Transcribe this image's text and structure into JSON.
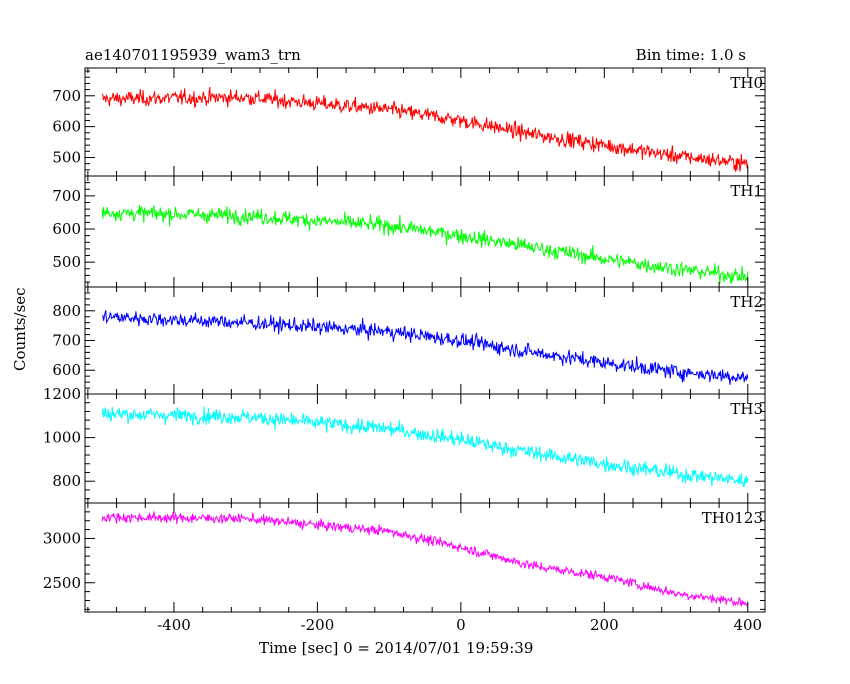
{
  "header": {
    "title_left": "ae140701195939_wam3_trn",
    "title_right": "Bin time: 1.0 s"
  },
  "axes": {
    "ylabel": "Counts/sec",
    "xlabel": "Time [sec] 0 = 2014/07/01 19:59:39"
  },
  "chart_data": {
    "type": "line",
    "x_range": [
      -500,
      400
    ],
    "bin_time_s": 1.0,
    "x_ticks": [
      -400,
      -200,
      0,
      200,
      400
    ],
    "panels": [
      {
        "name": "TH0",
        "color": "#ff0000",
        "ylim": [
          440,
          790
        ],
        "yticks": [
          500,
          600,
          700
        ],
        "trend": [
          [
            -500,
            690
          ],
          [
            -300,
            695
          ],
          [
            -100,
            655
          ],
          [
            0,
            620
          ],
          [
            100,
            575
          ],
          [
            200,
            540
          ],
          [
            300,
            505
          ],
          [
            400,
            480
          ]
        ],
        "noise": 32
      },
      {
        "name": "TH1",
        "color": "#00ff00",
        "ylim": [
          425,
          760
        ],
        "yticks": [
          500,
          600,
          700
        ],
        "trend": [
          [
            -500,
            650
          ],
          [
            -300,
            640
          ],
          [
            -100,
            610
          ],
          [
            0,
            580
          ],
          [
            100,
            545
          ],
          [
            200,
            510
          ],
          [
            300,
            480
          ],
          [
            400,
            455
          ]
        ],
        "noise": 30
      },
      {
        "name": "TH2",
        "color": "#0000ff",
        "ylim": [
          520,
          880
        ],
        "yticks": [
          600,
          700,
          800
        ],
        "trend": [
          [
            -500,
            780
          ],
          [
            -300,
            760
          ],
          [
            -100,
            730
          ],
          [
            0,
            700
          ],
          [
            100,
            660
          ],
          [
            200,
            625
          ],
          [
            300,
            595
          ],
          [
            400,
            575
          ]
        ],
        "noise": 32
      },
      {
        "name": "TH3",
        "color": "#00ffff",
        "ylim": [
          700,
          1200
        ],
        "yticks": [
          800,
          1000,
          1200
        ],
        "trend": [
          [
            -500,
            1110
          ],
          [
            -300,
            1095
          ],
          [
            -100,
            1040
          ],
          [
            0,
            990
          ],
          [
            100,
            930
          ],
          [
            200,
            880
          ],
          [
            300,
            835
          ],
          [
            400,
            800
          ]
        ],
        "noise": 45
      },
      {
        "name": "TH0123",
        "color": "#ff00ff",
        "ylim": [
          2170,
          3400
        ],
        "yticks": [
          2500,
          3000
        ],
        "trend": [
          [
            -500,
            3240
          ],
          [
            -300,
            3225
          ],
          [
            -100,
            3080
          ],
          [
            0,
            2900
          ],
          [
            100,
            2690
          ],
          [
            200,
            2570
          ],
          [
            300,
            2380
          ],
          [
            400,
            2270
          ]
        ],
        "noise": 70
      }
    ]
  }
}
